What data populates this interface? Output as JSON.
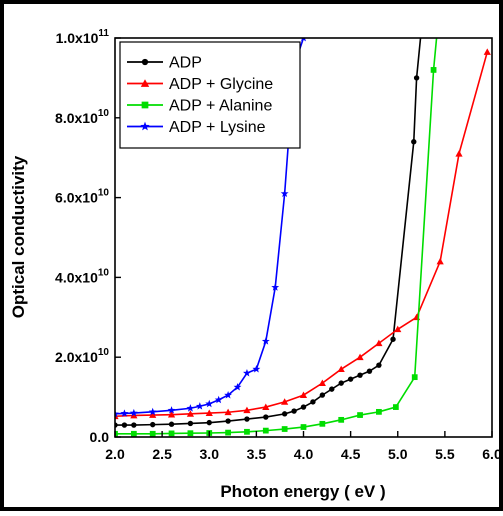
{
  "chart_data": {
    "type": "line",
    "title": "",
    "xlabel": "Photon energy ( eV )",
    "ylabel": "Optical conductivity",
    "xlim": [
      2.0,
      6.0
    ],
    "ylim": [
      0,
      100000000000
    ],
    "grid": false,
    "legend_position": "top-left",
    "x_ticks": [
      2.0,
      2.5,
      3.0,
      3.5,
      4.0,
      4.5,
      5.0,
      5.5,
      6.0
    ],
    "x_tick_labels": [
      "2.0",
      "2.5",
      "3.0",
      "3.5",
      "4.0",
      "4.5",
      "5.0",
      "5.5",
      "6.0"
    ],
    "y_ticks": [
      0,
      20000000000,
      40000000000,
      60000000000,
      80000000000,
      100000000000
    ],
    "y_tick_labels": [
      {
        "mantissa": "0.0",
        "exp": ""
      },
      {
        "mantissa": "2.0x10",
        "exp": "10"
      },
      {
        "mantissa": "4.0x10",
        "exp": "10"
      },
      {
        "mantissa": "6.0x10",
        "exp": "10"
      },
      {
        "mantissa": "8.0x10",
        "exp": "10"
      },
      {
        "mantissa": "1.0x10",
        "exp": "11"
      }
    ],
    "series": [
      {
        "name": "ADP",
        "color": "#000000",
        "marker": "circle",
        "x": [
          2.0,
          2.1,
          2.2,
          2.4,
          2.6,
          2.8,
          3.0,
          3.2,
          3.4,
          3.6,
          3.8,
          3.9,
          4.0,
          4.1,
          4.2,
          4.3,
          4.4,
          4.5,
          4.6,
          4.7,
          4.8,
          4.95,
          5.17,
          5.2,
          5.25
        ],
        "y": [
          3000000000.0,
          3000000000.0,
          3000000000.0,
          3100000000.0,
          3200000000.0,
          3400000000.0,
          3600000000.0,
          4000000000.0,
          4500000000.0,
          5000000000.0,
          5800000000.0,
          6500000000.0,
          7500000000.0,
          8800000000.0,
          10500000000.0,
          12000000000.0,
          13500000000.0,
          14500000000.0,
          15500000000.0,
          16500000000.0,
          18000000000.0,
          24500000000.0,
          74000000000.0,
          90000000000.0,
          102000000000.0
        ]
      },
      {
        "name": "ADP + Glycine",
        "color": "#ff0000",
        "marker": "triangle",
        "x": [
          2.0,
          2.2,
          2.4,
          2.6,
          2.8,
          3.0,
          3.2,
          3.4,
          3.6,
          3.8,
          4.0,
          4.2,
          4.4,
          4.6,
          4.8,
          5.0,
          5.2,
          5.45,
          5.65,
          5.95
        ],
        "y": [
          5200000000.0,
          5400000000.0,
          5500000000.0,
          5600000000.0,
          5800000000.0,
          6000000000.0,
          6200000000.0,
          6700000000.0,
          7500000000.0,
          8800000000.0,
          10500000000.0,
          13500000000.0,
          17000000000.0,
          20000000000.0,
          23500000000.0,
          27000000000.0,
          30000000000.0,
          44000000000.0,
          71000000000.0,
          96500000000.0
        ]
      },
      {
        "name": "ADP + Alanine",
        "color": "#00dd00",
        "marker": "square",
        "x": [
          2.0,
          2.2,
          2.4,
          2.6,
          2.8,
          3.0,
          3.2,
          3.4,
          3.6,
          3.8,
          4.0,
          4.2,
          4.4,
          4.6,
          4.8,
          4.98,
          5.18,
          5.38,
          5.42
        ],
        "y": [
          800000000.0,
          800000000.0,
          800000000.0,
          900000000.0,
          950000000.0,
          1000000000.0,
          1100000000.0,
          1300000000.0,
          1600000000.0,
          2000000000.0,
          2500000000.0,
          3300000000.0,
          4300000000.0,
          5500000000.0,
          6300000000.0,
          7500000000.0,
          15000000000.0,
          92000000000.0,
          102000000000.0
        ]
      },
      {
        "name": "ADP + Lysine",
        "color": "#0000ff",
        "marker": "star",
        "x": [
          2.0,
          2.1,
          2.2,
          2.4,
          2.6,
          2.8,
          2.9,
          3.0,
          3.1,
          3.2,
          3.3,
          3.4,
          3.5,
          3.6,
          3.7,
          3.8,
          3.9,
          4.0,
          4.05
        ],
        "y": [
          5800000000.0,
          5900000000.0,
          6000000000.0,
          6300000000.0,
          6700000000.0,
          7200000000.0,
          7700000000.0,
          8300000000.0,
          9300000000.0,
          10500000000.0,
          12500000000.0,
          16000000000.0,
          17000000000.0,
          24000000000.0,
          37500000000.0,
          61000000000.0,
          93000000000.0,
          100000000000.0,
          102000000000.0
        ]
      }
    ]
  }
}
